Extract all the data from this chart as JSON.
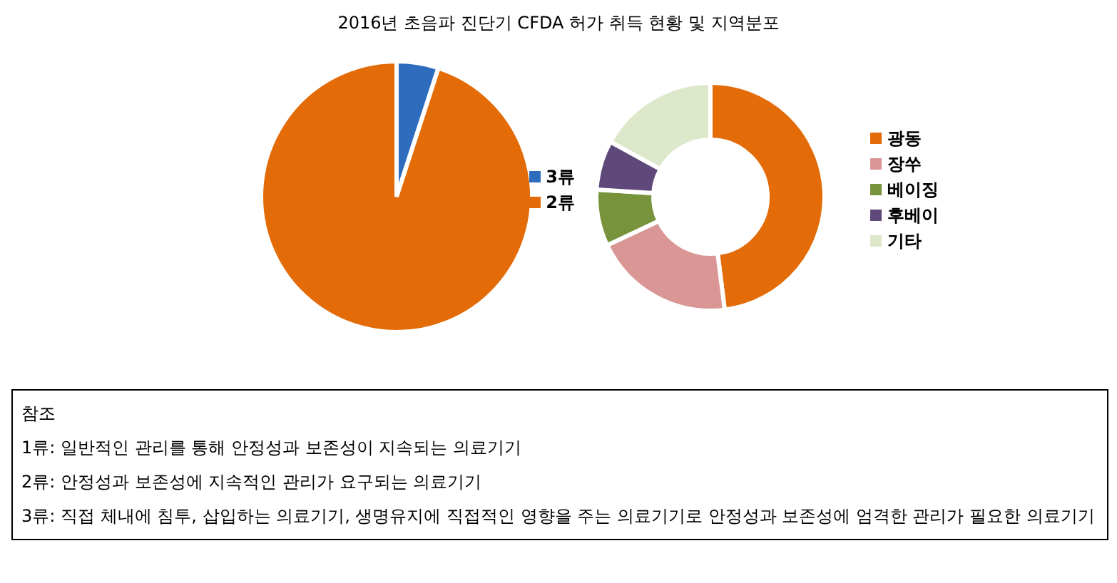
{
  "chart_data": [
    {
      "type": "pie",
      "title": "2016년 초음파 진단기 CFDA 허가 취득 현황 및 지역분포",
      "categories": [
        "3류",
        "2류"
      ],
      "values": [
        5,
        95
      ],
      "colors": [
        "#2e6dbd",
        "#e36c09"
      ],
      "legend": "right",
      "annotations": [
        "참조",
        "1류: 일반적인 관리를 통해 안정성과 보존성이 지속되는 의료기기",
        "2류: 안정성과 보존성에 지속적인 관리가 요구되는 의료기기",
        "3류: 직접 체내에 침투, 삽입하는 의료기기, 생명유지에 직접적인 영향을 주는 의료기기로 안정성과 보존성에 엄격한 관리가 필요한 의료기기"
      ]
    },
    {
      "type": "donut",
      "categories": [
        "광동",
        "장쑤",
        "베이징",
        "후베이",
        "기타"
      ],
      "values": [
        48,
        20,
        8,
        7,
        17
      ],
      "colors": [
        "#e36c09",
        "#d99694",
        "#77933c",
        "#5f497a",
        "#dde8cb"
      ],
      "legend": "right"
    }
  ]
}
